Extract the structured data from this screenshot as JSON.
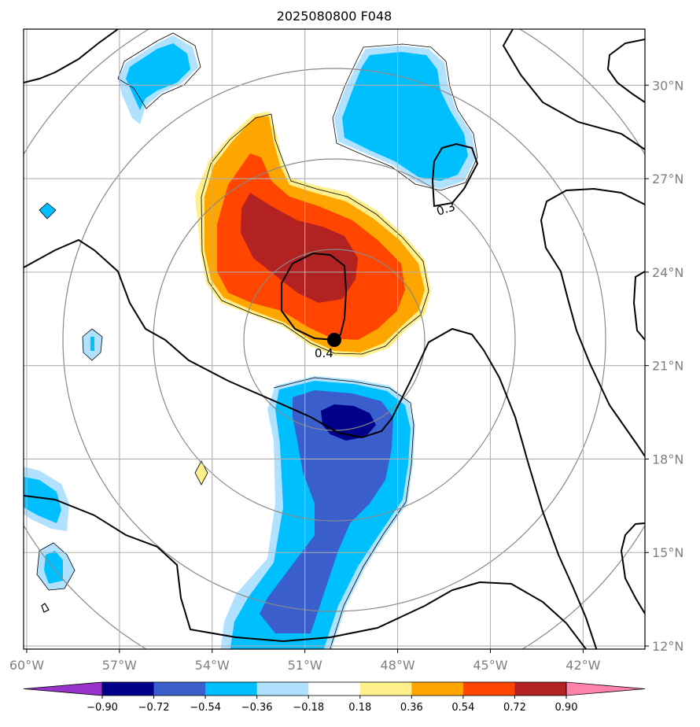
{
  "chart_data": {
    "type": "heatmap",
    "title": "2025080800 F048",
    "x_ticks": [
      "60°W",
      "57°W",
      "54°W",
      "51°W",
      "48°W",
      "45°W",
      "42°W"
    ],
    "y_ticks": [
      "12°N",
      "15°N",
      "18°N",
      "21°N",
      "24°N",
      "27°N",
      "30°N"
    ],
    "x_values": [
      -60,
      -57,
      -54,
      -51,
      -48,
      -45,
      -42
    ],
    "y_values": [
      12,
      15,
      18,
      21,
      24,
      27,
      30
    ],
    "xlim": [
      -60.1,
      -40
    ],
    "ylim": [
      11.9,
      31.8
    ],
    "grid": true,
    "colorbar": {
      "levels": [
        "−0.90",
        "−0.72",
        "−0.54",
        "−0.36",
        "−0.18",
        "0.18",
        "0.36",
        "0.54",
        "0.72",
        "0.90"
      ],
      "colors": [
        "#9932cc",
        "#00008b",
        "#3a5fcd",
        "#00bfff",
        "#b0e2ff",
        "#ffffff",
        "#fff08c",
        "#ffa500",
        "#ff4500",
        "#b22222",
        "#ff82ab"
      ],
      "extend": "both",
      "placement": "bottom"
    },
    "contour_labels": [
      "0.4",
      "0.3"
    ],
    "center_marker": {
      "lon": -49.8,
      "lat": 21.8
    }
  }
}
